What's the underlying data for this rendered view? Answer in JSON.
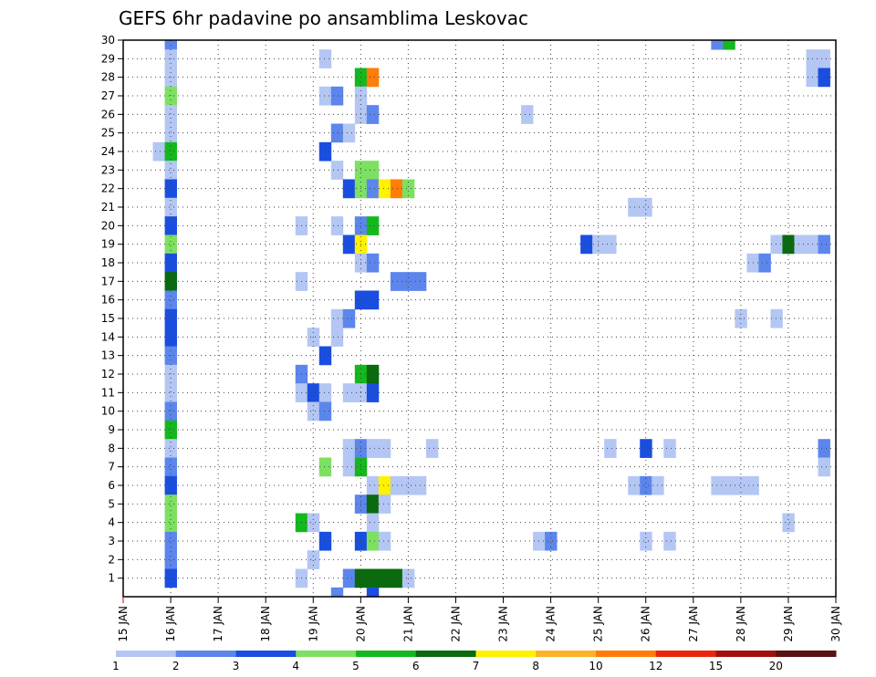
{
  "chart_data": {
    "type": "heatmap",
    "title": "GEFS 6hr padavine po ansamblima Leskovac",
    "x_tick_labels": [
      "15 JAN",
      "16 JAN",
      "17 JAN",
      "18 JAN",
      "19 JAN",
      "20 JAN",
      "21 JAN",
      "22 JAN",
      "23 JAN",
      "24 JAN",
      "25 JAN",
      "26 JAN",
      "27 JAN",
      "28 JAN",
      "29 JAN",
      "30 JAN"
    ],
    "y_tick_labels": [
      "1",
      "2",
      "3",
      "4",
      "5",
      "6",
      "7",
      "8",
      "9",
      "10",
      "11",
      "12",
      "13",
      "14",
      "15",
      "16",
      "17",
      "18",
      "19",
      "20",
      "21",
      "22",
      "23",
      "24",
      "25",
      "26",
      "27",
      "28",
      "29",
      "30"
    ],
    "xlim_days": [
      15,
      30
    ],
    "ylim": [
      0,
      30
    ],
    "grid": true,
    "colorbar": {
      "labels": [
        "1",
        "2",
        "3",
        "4",
        "5",
        "6",
        "7",
        "8",
        "10",
        "12",
        "15",
        "20"
      ],
      "colors": [
        "#b4c6f3",
        "#5c86ec",
        "#1a4ee0",
        "#7de061",
        "#14b81c",
        "#0a6a0e",
        "#fff200",
        "#ffb029",
        "#ff7d0a",
        "#e8260b",
        "#a0110d",
        "#5a1210"
      ]
    },
    "cells": [
      [
        16,
        30,
        2
      ],
      [
        16,
        29,
        1
      ],
      [
        16,
        28,
        1
      ],
      [
        16,
        27,
        4
      ],
      [
        16,
        26,
        1
      ],
      [
        16,
        25,
        1
      ],
      [
        15.75,
        24,
        1
      ],
      [
        16,
        24,
        5
      ],
      [
        16,
        23,
        1
      ],
      [
        16,
        22,
        3
      ],
      [
        16,
        21,
        1
      ],
      [
        16,
        20,
        3
      ],
      [
        16,
        19,
        4
      ],
      [
        16,
        18,
        3
      ],
      [
        16,
        17,
        6
      ],
      [
        16,
        16,
        2
      ],
      [
        16,
        15,
        3
      ],
      [
        16,
        14,
        3
      ],
      [
        16,
        13,
        2
      ],
      [
        16,
        12,
        1
      ],
      [
        16,
        11,
        1
      ],
      [
        16,
        10,
        2
      ],
      [
        16,
        9,
        5
      ],
      [
        16,
        8,
        1
      ],
      [
        16,
        7,
        2
      ],
      [
        16,
        6,
        3
      ],
      [
        16,
        5,
        4
      ],
      [
        16,
        4,
        4
      ],
      [
        16,
        3,
        2
      ],
      [
        16,
        2,
        2
      ],
      [
        16,
        1,
        3
      ],
      [
        19.25,
        29,
        1
      ],
      [
        20,
        28,
        5
      ],
      [
        20.25,
        28,
        9
      ],
      [
        19.25,
        27,
        1
      ],
      [
        19.5,
        27,
        2
      ],
      [
        20,
        27,
        1
      ],
      [
        20,
        26,
        1
      ],
      [
        20.25,
        26,
        2
      ],
      [
        23.5,
        26,
        1
      ],
      [
        19.5,
        25,
        2
      ],
      [
        19.75,
        25,
        1
      ],
      [
        19.25,
        24,
        3
      ],
      [
        19.5,
        23,
        1
      ],
      [
        20,
        23,
        4
      ],
      [
        20.25,
        23,
        4
      ],
      [
        19.75,
        22,
        3
      ],
      [
        20,
        22,
        4
      ],
      [
        20.25,
        22,
        2
      ],
      [
        20.5,
        22,
        7
      ],
      [
        20.75,
        22,
        9
      ],
      [
        21,
        22,
        4
      ],
      [
        25.75,
        21,
        1
      ],
      [
        26,
        21,
        1
      ],
      [
        18.75,
        20,
        1
      ],
      [
        19.5,
        20,
        1
      ],
      [
        20,
        20,
        2
      ],
      [
        20.25,
        20,
        5
      ],
      [
        19.75,
        19,
        3
      ],
      [
        20,
        19,
        7
      ],
      [
        24.75,
        19,
        3
      ],
      [
        25,
        19,
        1
      ],
      [
        25.25,
        19,
        1
      ],
      [
        28.75,
        19,
        1
      ],
      [
        29,
        19,
        6
      ],
      [
        29.25,
        19,
        1
      ],
      [
        29.5,
        19,
        1
      ],
      [
        29.75,
        19,
        2
      ],
      [
        20,
        18,
        1
      ],
      [
        20.25,
        18,
        2
      ],
      [
        28.25,
        18,
        1
      ],
      [
        28.5,
        18,
        2
      ],
      [
        18.75,
        17,
        1
      ],
      [
        20.75,
        17,
        2
      ],
      [
        21,
        17,
        2
      ],
      [
        21.25,
        17,
        2
      ],
      [
        20,
        16,
        3
      ],
      [
        20.25,
        16,
        3
      ],
      [
        19.5,
        15,
        1
      ],
      [
        19.75,
        15,
        2
      ],
      [
        28,
        15,
        1
      ],
      [
        28.75,
        15,
        1
      ],
      [
        19,
        14,
        1
      ],
      [
        19.5,
        14,
        1
      ],
      [
        19.25,
        13,
        3
      ],
      [
        18.75,
        12,
        2
      ],
      [
        20,
        12,
        5
      ],
      [
        20.25,
        12,
        6
      ],
      [
        18.75,
        11,
        1
      ],
      [
        19,
        11,
        3
      ],
      [
        19.25,
        11,
        1
      ],
      [
        19.75,
        11,
        1
      ],
      [
        20,
        11,
        1
      ],
      [
        20.25,
        11,
        3
      ],
      [
        19,
        10,
        1
      ],
      [
        19.25,
        10,
        2
      ],
      [
        19.75,
        8,
        1
      ],
      [
        20,
        8,
        2
      ],
      [
        20.25,
        8,
        1
      ],
      [
        20.5,
        8,
        1
      ],
      [
        21.5,
        8,
        1
      ],
      [
        25.25,
        8,
        1
      ],
      [
        26,
        8,
        3
      ],
      [
        26.5,
        8,
        1
      ],
      [
        29.75,
        8,
        2
      ],
      [
        19.25,
        7,
        4
      ],
      [
        19.75,
        7,
        1
      ],
      [
        20,
        7,
        5
      ],
      [
        29.75,
        7,
        1
      ],
      [
        20.25,
        6,
        1
      ],
      [
        20.5,
        6,
        7
      ],
      [
        20.75,
        6,
        1
      ],
      [
        21,
        6,
        1
      ],
      [
        21.25,
        6,
        1
      ],
      [
        25.75,
        6,
        1
      ],
      [
        26,
        6,
        2
      ],
      [
        26.25,
        6,
        1
      ],
      [
        27.5,
        6,
        1
      ],
      [
        27.75,
        6,
        1
      ],
      [
        28,
        6,
        1
      ],
      [
        28.25,
        6,
        1
      ],
      [
        20,
        5,
        2
      ],
      [
        20.25,
        5,
        6
      ],
      [
        20.5,
        5,
        1
      ],
      [
        18.75,
        4,
        5
      ],
      [
        19,
        4,
        1
      ],
      [
        20.25,
        4,
        1
      ],
      [
        29,
        4,
        1
      ],
      [
        19.25,
        3,
        3
      ],
      [
        20,
        3,
        3
      ],
      [
        20.25,
        3,
        4
      ],
      [
        20.5,
        3,
        1
      ],
      [
        23.75,
        3,
        1
      ],
      [
        24,
        3,
        2
      ],
      [
        26,
        3,
        1
      ],
      [
        26.5,
        3,
        1
      ],
      [
        19,
        2,
        1
      ],
      [
        18.75,
        1,
        1
      ],
      [
        19.75,
        1,
        2
      ],
      [
        20,
        1,
        6
      ],
      [
        20.25,
        1,
        6
      ],
      [
        20.5,
        1,
        6
      ],
      [
        20.75,
        1,
        6
      ],
      [
        21,
        1,
        1
      ],
      [
        19.5,
        0,
        2
      ],
      [
        20.25,
        0,
        3
      ],
      [
        27.5,
        30,
        2
      ],
      [
        27.75,
        30,
        5
      ],
      [
        29.5,
        29,
        1
      ],
      [
        29.75,
        29,
        1
      ],
      [
        29.5,
        28,
        1
      ],
      [
        29.75,
        28,
        3
      ]
    ]
  }
}
